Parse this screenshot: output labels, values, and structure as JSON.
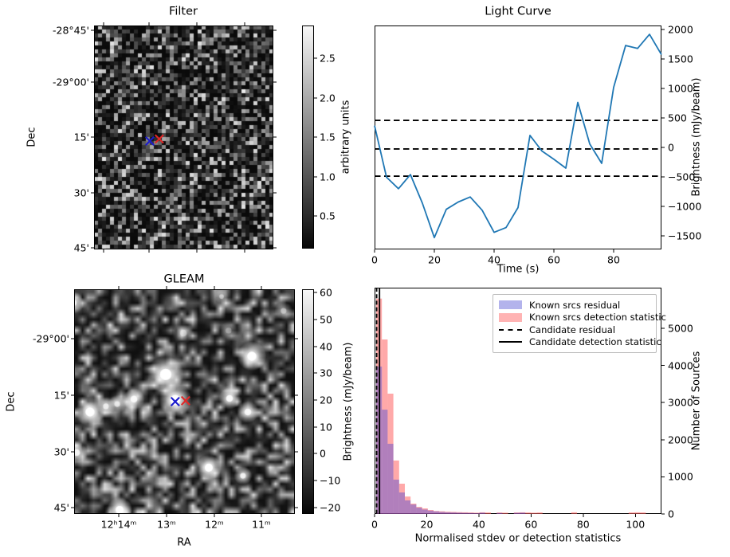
{
  "figure": {
    "background": "#ffffff",
    "kind": "matplotlib-figure"
  },
  "chart_data": [
    {
      "type": "heatmap",
      "title": "Filter",
      "xlabel": "",
      "ylabel": "Dec",
      "yticklabels": [
        "-28°45'",
        "-29°00'",
        "15'",
        "30'",
        "45'"
      ],
      "xticklabels": [],
      "colorbar": {
        "label": "arbitrary units",
        "ticks": [
          "2.5",
          "2.0",
          "1.5",
          "1.0",
          "0.5"
        ],
        "vmin": 0.07,
        "vmax": 2.94
      },
      "image": "pixelated gaussian noise map, dark gray",
      "noise": {
        "seed": 7,
        "cell": 5,
        "gamma": 2.9,
        "base": 10,
        "span": 215
      },
      "markers": [
        {
          "shape": "x",
          "color": "#1a1acd",
          "fx": 0.311,
          "fy": 0.516
        },
        {
          "shape": "x",
          "color": "#e02828",
          "fx": 0.364,
          "fy": 0.507
        }
      ]
    },
    {
      "type": "line",
      "title": "Light Curve",
      "xlabel": "Time (s)",
      "ylabel": "Brightness (mJy/beam)",
      "line_color": "#1f77b4",
      "x": [
        0,
        4,
        8,
        12,
        16,
        20,
        24,
        28,
        32,
        36,
        40,
        44,
        48,
        52,
        56,
        60,
        64,
        68,
        72,
        76,
        80,
        84,
        88,
        92,
        96
      ],
      "y": [
        370,
        -505,
        -700,
        -460,
        -945,
        -1530,
        -1050,
        -925,
        -840,
        -1065,
        -1440,
        -1360,
        -1020,
        205,
        -60,
        -200,
        -350,
        765,
        60,
        -270,
        1020,
        1730,
        1680,
        1920,
        1575
      ],
      "hlines": {
        "values": [
          460,
          -25,
          -487
        ],
        "style": "dashed",
        "color": "#000000"
      },
      "xticks": [
        0,
        20,
        40,
        60,
        80
      ],
      "yticks": [
        2000,
        1500,
        1000,
        500,
        0,
        -500,
        -1000,
        -1500
      ],
      "yticklabels": [
        "2000",
        "1500",
        "1000",
        "500",
        "0",
        "−500",
        "−1000",
        "−1500"
      ],
      "xlim": [
        0,
        96
      ],
      "ylim": [
        -1730,
        2070
      ],
      "yaxis_side": "right",
      "grid": false
    },
    {
      "type": "heatmap",
      "title": "GLEAM",
      "xlabel": "RA",
      "ylabel": "Dec",
      "yticklabels": [
        "-29°00'",
        "15'",
        "30'",
        "45'"
      ],
      "xticklabels": [
        "12ʰ14ᵐ",
        "13ᵐ",
        "12ᵐ",
        "11ᵐ"
      ],
      "colorbar": {
        "label": "Brightness (mJy/beam)",
        "ticks": [
          "60",
          "50",
          "40",
          "30",
          "20",
          "10",
          "0",
          "−10",
          "−20"
        ],
        "vmin": -22,
        "vmax": 61
      },
      "image": "smoothed radio sky map with point sources",
      "noise": {
        "seed": 11,
        "cell": 7,
        "gamma": 2.3,
        "base": 16,
        "span": 215
      },
      "sources": [
        {
          "fx": 0.415,
          "fy": 0.379,
          "r": 10,
          "b": 1.0
        },
        {
          "fx": 0.458,
          "fy": 0.493,
          "r": 9,
          "b": 1.0
        },
        {
          "fx": 0.271,
          "fy": 0.489,
          "r": 6,
          "b": 0.85
        },
        {
          "fx": 0.072,
          "fy": 0.546,
          "r": 8,
          "b": 1.0
        },
        {
          "fx": 0.144,
          "fy": 0.521,
          "r": 5,
          "b": 0.7
        },
        {
          "fx": 0.195,
          "fy": 0.511,
          "r": 5,
          "b": 0.65
        },
        {
          "fx": 0.805,
          "fy": 0.298,
          "r": 8,
          "b": 1.0
        },
        {
          "fx": 0.704,
          "fy": 0.486,
          "r": 6,
          "b": 0.9
        },
        {
          "fx": 0.787,
          "fy": 0.546,
          "r": 6,
          "b": 0.8
        },
        {
          "fx": 0.765,
          "fy": 0.83,
          "r": 5,
          "b": 0.8
        },
        {
          "fx": 0.61,
          "fy": 0.794,
          "r": 7,
          "b": 1.0
        },
        {
          "fx": 0.011,
          "fy": 0.727,
          "r": 6,
          "b": 0.8
        },
        {
          "fx": 0.206,
          "fy": 0.982,
          "r": 7,
          "b": 1.0
        },
        {
          "fx": -0.004,
          "fy": 0.06,
          "r": 6,
          "b": 0.8
        },
        {
          "fx": 0.668,
          "fy": 0.032,
          "r": 4,
          "b": 0.5
        },
        {
          "fx": 0.949,
          "fy": 0.096,
          "r": 5,
          "b": 0.45
        },
        {
          "fx": 0.495,
          "fy": 0.195,
          "r": 6,
          "b": 0.35
        },
        {
          "fx": 0.7,
          "fy": 0.184,
          "r": 5,
          "b": 0.3
        }
      ],
      "markers": [
        {
          "shape": "x",
          "color": "#1a1acd",
          "fx": 0.458,
          "fy": 0.5
        },
        {
          "shape": "x",
          "color": "#e02828",
          "fx": 0.505,
          "fy": 0.496
        }
      ]
    },
    {
      "type": "bar",
      "title": "",
      "xlabel": "Normalised stdev or detection statistics",
      "ylabel": "Number of Sources",
      "bin_start": 0.6,
      "bin_width": 2.2,
      "series": [
        {
          "name": "Known srcs detection statistic",
          "swatch": "#ffb3b3",
          "fill": "rgba(255,99,99,0.55)",
          "values": [
            5800,
            4700,
            3240,
            1440,
            815,
            470,
            280,
            190,
            150,
            107,
            80,
            70,
            60,
            55,
            50,
            45,
            40,
            35,
            45,
            40,
            0,
            40,
            35,
            0,
            40,
            45,
            40,
            35,
            40,
            0,
            0,
            0,
            0,
            0,
            45,
            0,
            0,
            0,
            0,
            0,
            0,
            0,
            0,
            0,
            40,
            45,
            40,
            0,
            0,
            0
          ]
        },
        {
          "name": "Known srcs residual",
          "swatch": "#b3b3ec",
          "fill": "rgba(70,70,215,0.42)",
          "values": [
            3970,
            2810,
            1890,
            925,
            580,
            365,
            255,
            170,
            120,
            90,
            70,
            55,
            45,
            40,
            35,
            30,
            25,
            20,
            35,
            0,
            0,
            25,
            0,
            0,
            30,
            35,
            0,
            0,
            0,
            0,
            0,
            0,
            0,
            0,
            0,
            0,
            0,
            0,
            0,
            0,
            0,
            0,
            0,
            0,
            0,
            0,
            0,
            0,
            0,
            0
          ]
        }
      ],
      "vlines": [
        {
          "label": "Candidate residual",
          "x": 0.8,
          "style": "dashed",
          "color": "#000000"
        },
        {
          "label": "Candidate detection statistic",
          "x": 1.9,
          "style": "solid",
          "color": "#000000"
        }
      ],
      "legend": [
        {
          "label": "Known srcs residual"
        },
        {
          "label": "Known srcs detection statistic"
        },
        {
          "label": "Candidate residual"
        },
        {
          "label": "Candidate detection statistic"
        }
      ],
      "legend_position": "upper right",
      "xticks": [
        0,
        20,
        40,
        60,
        80,
        100
      ],
      "yticks": [
        0,
        1000,
        2000,
        3000,
        4000,
        5000
      ],
      "xlim": [
        0,
        110
      ],
      "ylim": [
        0,
        6095
      ],
      "yaxis_side": "right",
      "grid": false
    }
  ]
}
